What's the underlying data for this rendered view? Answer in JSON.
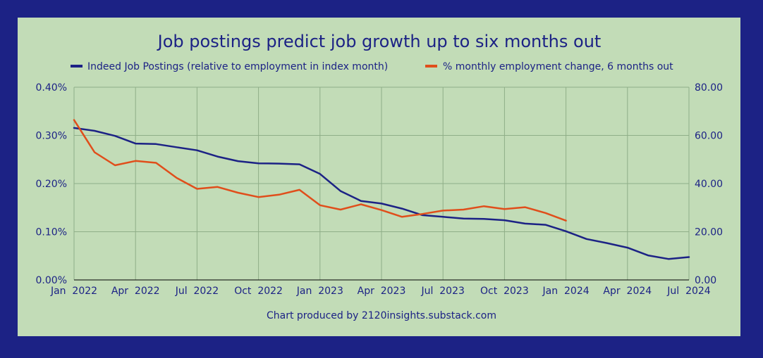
{
  "chart_data": {
    "type": "line",
    "title": "Job postings predict job growth up to six months out",
    "credit": "Chart produced by 2120insights.substack.com",
    "colors": {
      "background": "#1c2285",
      "plot": "#c2dcb7",
      "grid": "#8fae88",
      "text": "#1c2285",
      "axis": "#000000"
    },
    "x_ticks": [
      "Jan  2022",
      "Apr  2022",
      "Jul  2022",
      "Oct  2022",
      "Jan  2023",
      "Apr  2023",
      "Jul  2023",
      "Oct  2023",
      "Jan  2024",
      "Apr  2024",
      "Jul  2024"
    ],
    "x_range_months": [
      0,
      30
    ],
    "left_axis": {
      "ylim": [
        0,
        0.4
      ],
      "ticks": [
        "0.00%",
        "0.10%",
        "0.20%",
        "0.30%",
        "0.40%"
      ]
    },
    "right_axis": {
      "ylim": [
        0,
        80
      ],
      "ticks": [
        "0.00",
        "20.00",
        "40.00",
        "60.00",
        "80.00"
      ]
    },
    "series": [
      {
        "name": "Indeed Job Postings (relative to employment in index month)",
        "color": "#1c2285",
        "axis": "right",
        "x": [
          0,
          1,
          2,
          3,
          4,
          5,
          6,
          7,
          8,
          9,
          10,
          11,
          12,
          13,
          14,
          15,
          16,
          17,
          18,
          19,
          20,
          21,
          22,
          23,
          24,
          25,
          26,
          27,
          28,
          29,
          30
        ],
        "values": [
          63.1,
          61.9,
          59.8,
          56.6,
          56.4,
          55.1,
          53.8,
          51.2,
          49.3,
          48.4,
          48.3,
          48.0,
          44.0,
          36.9,
          32.8,
          31.7,
          29.6,
          26.9,
          26.2,
          25.5,
          25.3,
          24.8,
          23.4,
          22.9,
          20.2,
          17.0,
          15.3,
          13.4,
          10.2,
          8.7,
          9.5
        ]
      },
      {
        "name": "% monthly employment change, 6 months out",
        "color": "#e04e1b",
        "axis": "left",
        "x": [
          0,
          1,
          2,
          3,
          4,
          5,
          6,
          7,
          8,
          9,
          10,
          11,
          12,
          13,
          14,
          15,
          16,
          17,
          18,
          19,
          20,
          21,
          22,
          23,
          24
        ],
        "values": [
          0.332,
          0.265,
          0.238,
          0.247,
          0.243,
          0.212,
          0.189,
          0.193,
          0.181,
          0.172,
          0.177,
          0.187,
          0.155,
          0.146,
          0.157,
          0.145,
          0.131,
          0.137,
          0.144,
          0.146,
          0.153,
          0.147,
          0.151,
          0.139,
          0.123
        ]
      }
    ]
  }
}
